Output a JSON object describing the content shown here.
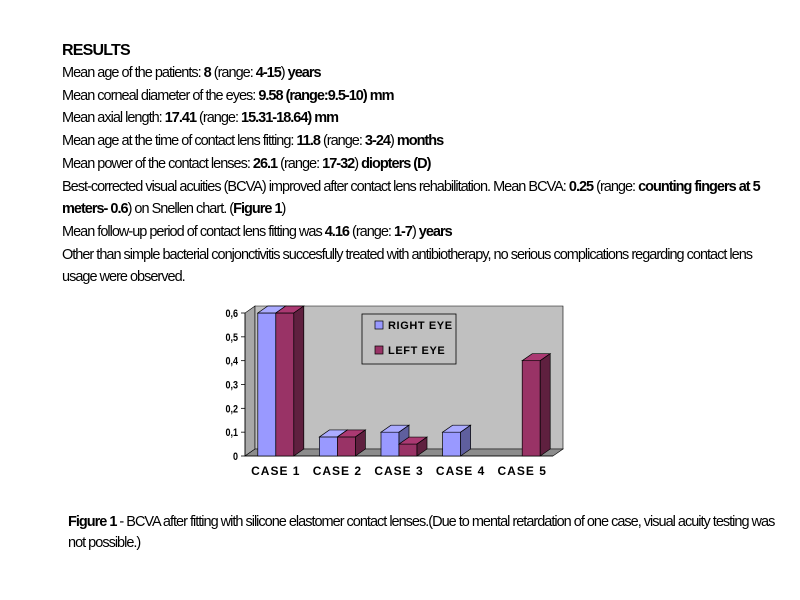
{
  "results": {
    "title": "RESULTS",
    "lines": [
      [
        {
          "t": "Mean age of the patients: "
        },
        {
          "t": "8",
          "b": true
        },
        {
          "t": " (range: "
        },
        {
          "t": "4-15",
          "b": true
        },
        {
          "t": ") "
        },
        {
          "t": "years",
          "b": true
        }
      ],
      [
        {
          "t": "Mean corneal diameter of the eyes: "
        },
        {
          "t": "9.58 (range:9.5-10) mm",
          "b": true
        }
      ],
      [
        {
          "t": "Mean axial length: "
        },
        {
          "t": "17.41",
          "b": true
        },
        {
          "t": " (range: "
        },
        {
          "t": "15.31-18.64) mm",
          "b": true
        }
      ],
      [
        {
          "t": "Mean age at the time of contact lens fitting: "
        },
        {
          "t": "11.8",
          "b": true
        },
        {
          "t": " (range: "
        },
        {
          "t": "3-24",
          "b": true
        },
        {
          "t": ") "
        },
        {
          "t": "months",
          "b": true
        }
      ],
      [
        {
          "t": "Mean power of the contact lenses: "
        },
        {
          "t": "26.1",
          "b": true
        },
        {
          "t": " (range: "
        },
        {
          "t": "17-32",
          "b": true
        },
        {
          "t": ") "
        },
        {
          "t": "diopters (D)",
          "b": true
        }
      ],
      [
        {
          "t": "Best-corrected visual acuities (BCVA) improved after contact lens rehabilitation. Mean BCVA: "
        },
        {
          "t": "0.25",
          "b": true
        },
        {
          "t": " (range: "
        },
        {
          "t": "counting fingers at 5 meters- 0.6",
          "b": true
        },
        {
          "t": ") on Snellen chart. ("
        },
        {
          "t": "Figure 1",
          "b": true
        },
        {
          "t": ")"
        }
      ],
      [
        {
          "t": "Mean follow-up period of contact lens fitting was "
        },
        {
          "t": "4.16",
          "b": true
        },
        {
          "t": " (range: "
        },
        {
          "t": "1-7",
          "b": true
        },
        {
          "t": ") "
        },
        {
          "t": "years",
          "b": true
        }
      ],
      [
        {
          "t": "Other than simple bacterial conjonctivitis succesfully treated with antibiotherapy, no serious complications regarding contact lens usage were observed."
        }
      ]
    ]
  },
  "caption": {
    "label": "Figure 1",
    "text": " - BCVA after fitting with silicone elastomer contact lenses.(Due to mental retardation of one case, visual acuity testing was not possible.)"
  },
  "colors": {
    "right_eye": "#9999ff",
    "left_eye": "#993366",
    "plot_background": "#c0c0c0",
    "page_background": "#ffffff"
  },
  "chart_data": {
    "type": "bar",
    "style": "3d-clustered",
    "categories": [
      "CASE 1",
      "CASE 2",
      "CASE 3",
      "CASE 4",
      "CASE 5"
    ],
    "series": [
      {
        "name": "RIGHT EYE",
        "color": "#9999ff",
        "values": [
          0.6,
          0.08,
          0.1,
          0.1,
          null
        ]
      },
      {
        "name": "LEFT EYE",
        "color": "#993366",
        "values": [
          0.6,
          0.08,
          0.05,
          null,
          0.4
        ]
      }
    ],
    "yticks": [
      "0",
      "0,1",
      "0,2",
      "0,3",
      "0,4",
      "0,5",
      "0,6"
    ],
    "ylim": [
      0,
      0.6
    ],
    "grid": false,
    "legend": "top-center",
    "title": "",
    "xlabel": "",
    "ylabel": ""
  }
}
